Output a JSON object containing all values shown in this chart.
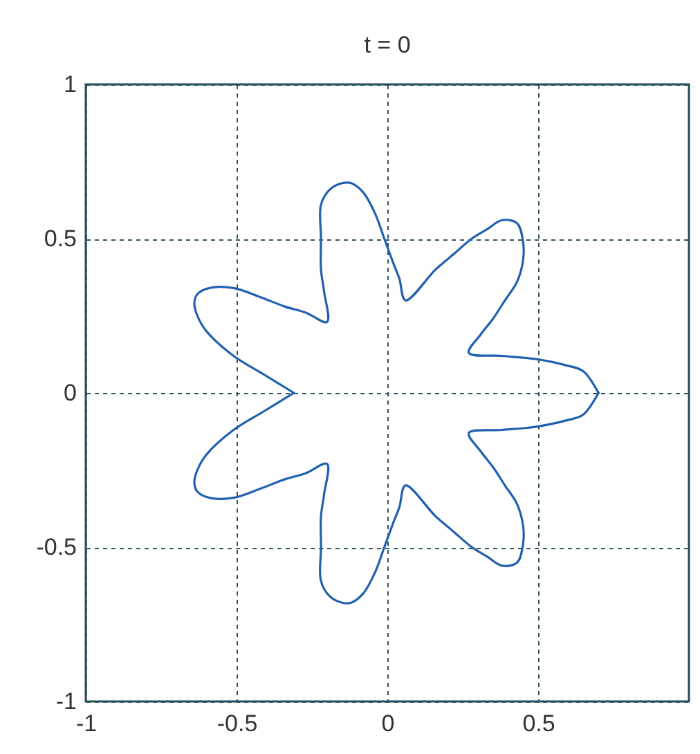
{
  "chart_data": {
    "type": "line",
    "title": "t = 0",
    "series": [
      {
        "color": "#2160b0",
        "x": [
          0.7,
          0.65,
          0.59,
          0.49,
          0.38,
          0.27,
          0.31,
          0.35,
          0.39,
          0.43,
          0.45,
          0.45,
          0.43,
          0.38,
          0.33,
          0.28,
          0.22,
          0.16,
          0.06,
          0.04,
          0.02,
          -0.01,
          -0.04,
          -0.08,
          -0.12,
          -0.15,
          -0.19,
          -0.22,
          -0.22,
          -0.22,
          -0.21,
          -0.2,
          -0.27,
          -0.34,
          -0.42,
          -0.51,
          -0.59,
          -0.63,
          -0.64,
          -0.63,
          -0.6,
          -0.51,
          -0.41,
          -0.31
        ],
        "values": [
          0.0,
          0.07,
          0.09,
          0.11,
          0.12,
          0.13,
          0.19,
          0.24,
          0.3,
          0.36,
          0.43,
          0.49,
          0.55,
          0.56,
          0.53,
          0.5,
          0.45,
          0.4,
          0.3,
          0.37,
          0.42,
          0.5,
          0.58,
          0.65,
          0.68,
          0.68,
          0.66,
          0.61,
          0.5,
          0.4,
          0.33,
          0.23,
          0.26,
          0.28,
          0.31,
          0.34,
          0.34,
          0.32,
          0.29,
          0.25,
          0.2,
          0.12,
          0.06,
          0.0
        ]
      },
      {
        "color": "#2160b0",
        "x": [
          -0.31,
          -0.41,
          -0.51,
          -0.6,
          -0.63,
          -0.64,
          -0.63,
          -0.59,
          -0.51,
          -0.42,
          -0.34,
          -0.27,
          -0.2,
          -0.21,
          -0.22,
          -0.22,
          -0.22,
          -0.19,
          -0.15,
          -0.12,
          -0.08,
          -0.04,
          -0.01,
          0.02,
          0.04,
          0.06,
          0.16,
          0.22,
          0.28,
          0.33,
          0.38,
          0.43,
          0.45,
          0.45,
          0.43,
          0.39,
          0.35,
          0.31,
          0.27,
          0.38,
          0.49,
          0.59,
          0.65,
          0.7
        ],
        "values": [
          0.0,
          -0.06,
          -0.12,
          -0.2,
          -0.25,
          -0.29,
          -0.32,
          -0.34,
          -0.34,
          -0.31,
          -0.28,
          -0.26,
          -0.23,
          -0.33,
          -0.4,
          -0.5,
          -0.61,
          -0.66,
          -0.68,
          -0.68,
          -0.65,
          -0.58,
          -0.5,
          -0.42,
          -0.37,
          -0.3,
          -0.4,
          -0.45,
          -0.5,
          -0.53,
          -0.56,
          -0.55,
          -0.49,
          -0.43,
          -0.36,
          -0.3,
          -0.24,
          -0.19,
          -0.13,
          -0.12,
          -0.11,
          -0.09,
          -0.07,
          0.0
        ]
      }
    ],
    "xlim": [
      -1,
      1
    ],
    "xticks": [
      -1,
      -0.5,
      0,
      0.5
    ],
    "ylim": [
      -1,
      1
    ],
    "yticks": [
      -1,
      -0.5,
      0,
      0.5,
      1
    ],
    "grid": true
  }
}
